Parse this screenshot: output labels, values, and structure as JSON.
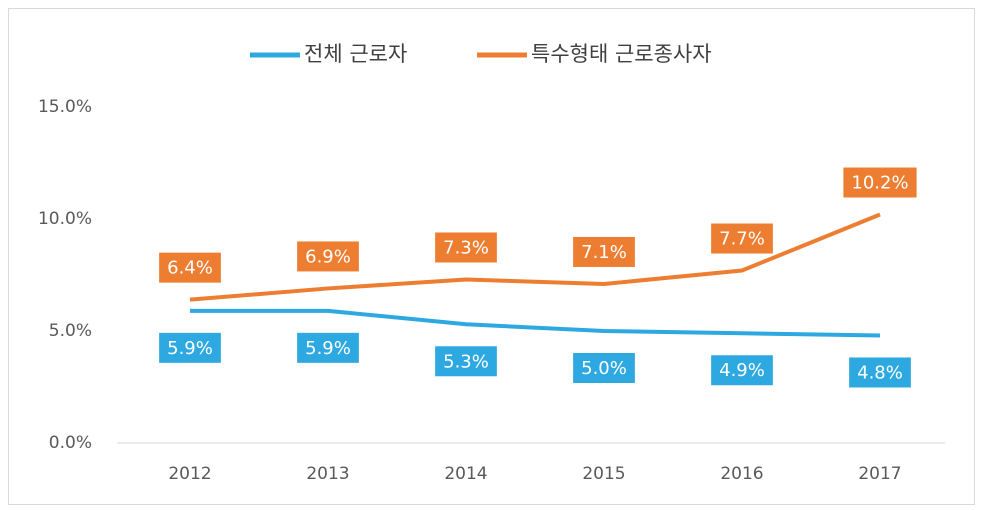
{
  "chart_data": {
    "type": "line",
    "categories": [
      "2012",
      "2013",
      "2014",
      "2015",
      "2016",
      "2017"
    ],
    "series": [
      {
        "name": "전체 근로자",
        "color": "#2ea8e0",
        "values": [
          5.9,
          5.9,
          5.3,
          5.0,
          4.9,
          4.8
        ],
        "value_labels": [
          "5.9%",
          "5.9%",
          "5.3%",
          "5.0%",
          "4.9%",
          "4.8%"
        ]
      },
      {
        "name": "특수형태 근로종사자",
        "color": "#ed7d31",
        "values": [
          6.4,
          6.9,
          7.3,
          7.1,
          7.7,
          10.2
        ],
        "value_labels": [
          "6.4%",
          "6.9%",
          "7.3%",
          "7.1%",
          "7.7%",
          "10.2%"
        ]
      }
    ],
    "ylim": [
      0,
      15
    ],
    "yticks": [
      {
        "value": 0,
        "label": "0.0%"
      },
      {
        "value": 5,
        "label": "5.0%"
      },
      {
        "value": 10,
        "label": "10.0%"
      },
      {
        "value": 15,
        "label": "15.0%"
      }
    ],
    "grid": false,
    "legend": "top"
  }
}
